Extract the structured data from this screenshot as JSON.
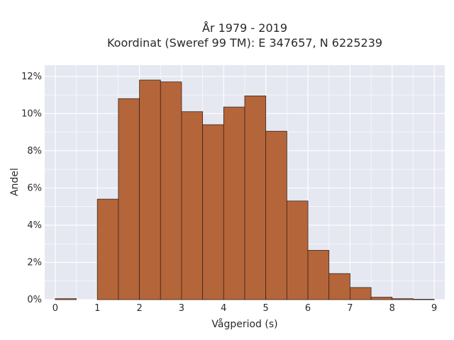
{
  "chart_data": {
    "type": "bar",
    "title": "År 1979 - 2019",
    "subtitle": "Koordinat (Sweref 99 TM): E 347657, N 6225239",
    "xlabel": "Vågperiod (s)",
    "ylabel": "Andel",
    "xlim": [
      -0.25,
      9.25
    ],
    "ylim": [
      0,
      12.6
    ],
    "bin_width": 0.5,
    "x_ticks": [
      0,
      1,
      2,
      3,
      4,
      5,
      6,
      7,
      8,
      9
    ],
    "y_ticks": [
      0,
      2,
      4,
      6,
      8,
      10,
      12
    ],
    "y_tick_labels": [
      "0%",
      "2%",
      "4%",
      "6%",
      "8%",
      "10%",
      "12%"
    ],
    "bins": [
      {
        "x0": 0.0,
        "x1": 0.5,
        "value": 0.05
      },
      {
        "x0": 0.5,
        "x1": 1.0,
        "value": 0.0
      },
      {
        "x0": 1.0,
        "x1": 1.5,
        "value": 5.4
      },
      {
        "x0": 1.5,
        "x1": 2.0,
        "value": 10.8
      },
      {
        "x0": 2.0,
        "x1": 2.5,
        "value": 11.8
      },
      {
        "x0": 2.5,
        "x1": 3.0,
        "value": 11.7
      },
      {
        "x0": 3.0,
        "x1": 3.5,
        "value": 10.1
      },
      {
        "x0": 3.5,
        "x1": 4.0,
        "value": 9.4
      },
      {
        "x0": 4.0,
        "x1": 4.5,
        "value": 10.35
      },
      {
        "x0": 4.5,
        "x1": 5.0,
        "value": 10.95
      },
      {
        "x0": 5.0,
        "x1": 5.5,
        "value": 9.05
      },
      {
        "x0": 5.5,
        "x1": 6.0,
        "value": 5.3
      },
      {
        "x0": 6.0,
        "x1": 6.5,
        "value": 2.65
      },
      {
        "x0": 6.5,
        "x1": 7.0,
        "value": 1.4
      },
      {
        "x0": 7.0,
        "x1": 7.5,
        "value": 0.65
      },
      {
        "x0": 7.5,
        "x1": 8.0,
        "value": 0.13
      },
      {
        "x0": 8.0,
        "x1": 8.5,
        "value": 0.05
      },
      {
        "x0": 8.5,
        "x1": 9.0,
        "value": 0.02
      }
    ],
    "grid": true,
    "colors": {
      "bar_fill": "#b5653a",
      "bar_edge": "#3b2418",
      "plot_background": "#e5e8f1",
      "grid": "#ffffff"
    }
  }
}
